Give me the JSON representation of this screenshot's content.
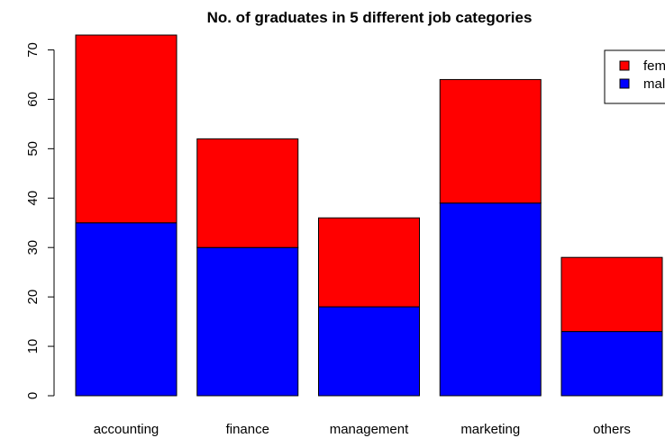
{
  "chart_data": {
    "type": "bar",
    "stacked": true,
    "title": "No. of graduates in 5 different job categories",
    "xlabel": "",
    "ylabel": "",
    "categories": [
      "accounting",
      "finance",
      "management",
      "marketing",
      "others"
    ],
    "series": [
      {
        "name": "male",
        "color": "#0000ff",
        "values": [
          35,
          30,
          18,
          39,
          13
        ]
      },
      {
        "name": "female",
        "color": "#ff0000",
        "values": [
          38,
          22,
          18,
          25,
          15
        ]
      }
    ],
    "ylim": [
      0,
      73
    ],
    "yticks": [
      0,
      10,
      20,
      30,
      40,
      50,
      60,
      70
    ],
    "grid": false,
    "legend_position": "top-right",
    "legend_order": [
      "female",
      "male"
    ]
  }
}
